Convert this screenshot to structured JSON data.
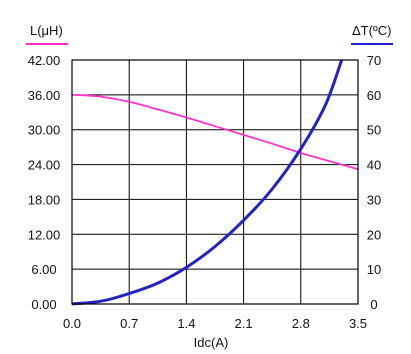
{
  "chart_data": {
    "type": "line",
    "xlabel": "Idc(A)",
    "x_ticks": [
      "0.0",
      "0.7",
      "1.4",
      "2.1",
      "2.8",
      "3.5"
    ],
    "xlim": [
      0,
      3.5
    ],
    "left_axis": {
      "label": "L(μH)",
      "ticks": [
        "42.00",
        "36.00",
        "30.00",
        "24.00",
        "18.00",
        "12.00",
        "6.00",
        "0.00"
      ],
      "ylim": [
        0,
        42
      ]
    },
    "right_axis": {
      "label": "ΔT(ºC)",
      "ticks": [
        "70",
        "60",
        "50",
        "40",
        "30",
        "20",
        "10",
        "0"
      ],
      "ylim": [
        0,
        70
      ]
    },
    "grid": true,
    "series": [
      {
        "name": "L(μH)",
        "axis": "left",
        "color": "#ff33cc",
        "x": [
          0.0,
          0.35,
          0.7,
          1.05,
          1.4,
          1.75,
          2.1,
          2.45,
          2.8,
          3.15,
          3.5
        ],
        "y": [
          36.0,
          35.7,
          34.8,
          33.5,
          32.1,
          30.6,
          29.1,
          27.6,
          26.0,
          24.6,
          23.2
        ]
      },
      {
        "name": "ΔT(ºC)",
        "axis": "right",
        "color": "#2222cc",
        "x": [
          0.0,
          0.35,
          0.7,
          1.05,
          1.4,
          1.75,
          2.1,
          2.45,
          2.8,
          3.1,
          3.3
        ],
        "y": [
          0.0,
          0.8,
          3.0,
          6.0,
          10.5,
          16.5,
          24.0,
          33.0,
          44.5,
          57.0,
          70.0
        ]
      }
    ]
  }
}
